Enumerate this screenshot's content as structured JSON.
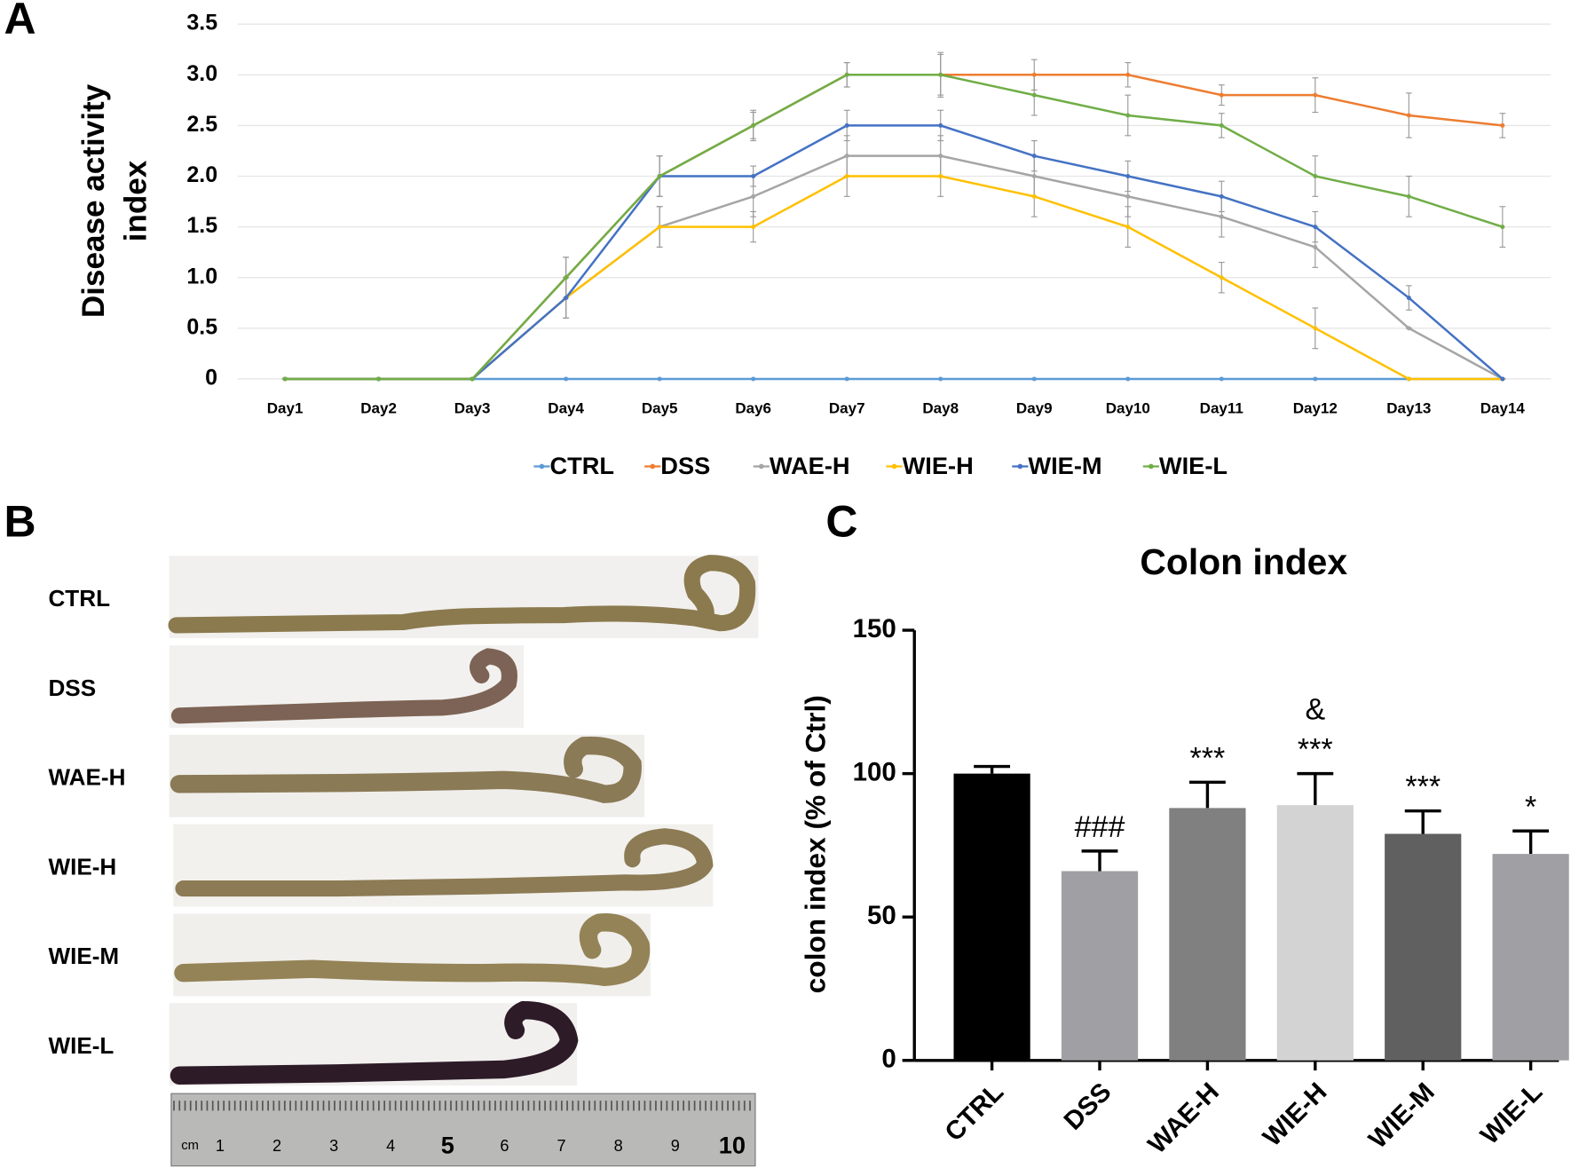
{
  "panel_labels": [
    "A",
    "B",
    "C"
  ],
  "panel_b": {
    "labels": [
      "CTRL",
      "DSS",
      "WAE-H",
      "WIE-H",
      "WIE-M",
      "WIE-L"
    ],
    "ruler": {
      "unit": "cm",
      "numbers": [
        1,
        2,
        3,
        4,
        5,
        6,
        7,
        8,
        9,
        10
      ]
    }
  },
  "chart_data": [
    {
      "type": "line",
      "ylabel": [
        "Disease activity",
        "index"
      ],
      "categories": [
        "Day1",
        "Day2",
        "Day3",
        "Day4",
        "Day5",
        "Day6",
        "Day7",
        "Day8",
        "Day9",
        "Day10",
        "Day11",
        "Day12",
        "Day13",
        "Day14"
      ],
      "ylim": [
        0,
        3.5
      ],
      "yticks": [
        0,
        0.5,
        {
          "value": 1,
          "label": "1.0"
        },
        1.5,
        {
          "value": 2,
          "label": "2.0"
        },
        2.5,
        {
          "value": 3,
          "label": "3.0"
        },
        3.5
      ],
      "grid": true,
      "legend": "bottom",
      "series": [
        {
          "name": "CTRL",
          "color": "#5b9bd5",
          "values": [
            0,
            0,
            0,
            0,
            0,
            0,
            0,
            0,
            0,
            0,
            0,
            0,
            0,
            0
          ],
          "errors": [
            0,
            0,
            0,
            0,
            0,
            0,
            0,
            0,
            0,
            0,
            0,
            0,
            0,
            0
          ]
        },
        {
          "name": "DSS",
          "color": "#ed7d31",
          "values": [
            0,
            0,
            0,
            1.0,
            2.0,
            2.5,
            3.0,
            3.0,
            3.0,
            3.0,
            2.8,
            2.8,
            2.6,
            2.5
          ],
          "errors": [
            0,
            0,
            0,
            0.2,
            0.2,
            0.15,
            0.12,
            0.22,
            0.15,
            0.12,
            0.1,
            0.17,
            0.22,
            0.12
          ]
        },
        {
          "name": "WAE-H",
          "color": "#a5a5a5",
          "values": [
            0,
            0,
            0,
            0.8,
            1.5,
            1.8,
            2.2,
            2.2,
            2.0,
            1.8,
            1.6,
            1.3,
            0.5,
            0
          ],
          "errors": [
            0,
            0,
            0,
            0.2,
            0.2,
            0.2,
            0.2,
            0.2,
            0.2,
            0.2,
            0.2,
            0.2,
            0,
            0
          ]
        },
        {
          "name": "WIE-H",
          "color": "#ffc000",
          "values": [
            0,
            0,
            0,
            0.8,
            1.5,
            1.5,
            2.0,
            2.0,
            1.8,
            1.5,
            1.0,
            0.5,
            0,
            0
          ],
          "errors": [
            0,
            0,
            0,
            0.2,
            0.2,
            0.15,
            0.2,
            0.2,
            0.2,
            0.2,
            0.15,
            0.2,
            0,
            0
          ]
        },
        {
          "name": "WIE-M",
          "color": "#4472c4",
          "values": [
            0,
            0,
            0,
            0.8,
            2.0,
            2.0,
            2.5,
            2.5,
            2.2,
            2.0,
            1.8,
            1.5,
            0.8,
            0
          ],
          "errors": [
            0,
            0,
            0,
            0.2,
            0.2,
            0.1,
            0.15,
            0.15,
            0.15,
            0.15,
            0.15,
            0.15,
            0.12,
            0
          ]
        },
        {
          "name": "WIE-L",
          "color": "#70ad47",
          "values": [
            0,
            0,
            0,
            1.0,
            2.0,
            2.5,
            3.0,
            3.0,
            2.8,
            2.6,
            2.5,
            2.0,
            1.8,
            1.5
          ],
          "errors": [
            0,
            0,
            0,
            0.2,
            0.2,
            0.13,
            0.12,
            0.2,
            0.2,
            0.2,
            0.12,
            0.2,
            0.2,
            0.2
          ]
        }
      ]
    },
    {
      "type": "bar",
      "title": "Colon index",
      "ylabel": "colon index (% of Ctrl)",
      "categories": [
        "CTRL",
        "DSS",
        "WAE-H",
        "WIE-H",
        "WIE-M",
        "WIE-L"
      ],
      "values": [
        100,
        66,
        88,
        89,
        79,
        72
      ],
      "errors": [
        2.5,
        7,
        9,
        11,
        8,
        8
      ],
      "colors": [
        "#000000",
        "#a0a0a4",
        "#808080",
        "#d3d3d3",
        "#606060",
        "#a0a0a4"
      ],
      "ylim": [
        0,
        150
      ],
      "yticks": [
        0,
        50,
        100,
        150
      ],
      "annotations": [
        {
          "category": "DSS",
          "text": [
            "###"
          ]
        },
        {
          "category": "WAE-H",
          "text": [
            "***"
          ]
        },
        {
          "category": "WIE-H",
          "text": [
            "&",
            "***"
          ]
        },
        {
          "category": "WIE-M",
          "text": [
            "***"
          ]
        },
        {
          "category": "WIE-L",
          "text": [
            "*"
          ]
        }
      ]
    }
  ]
}
